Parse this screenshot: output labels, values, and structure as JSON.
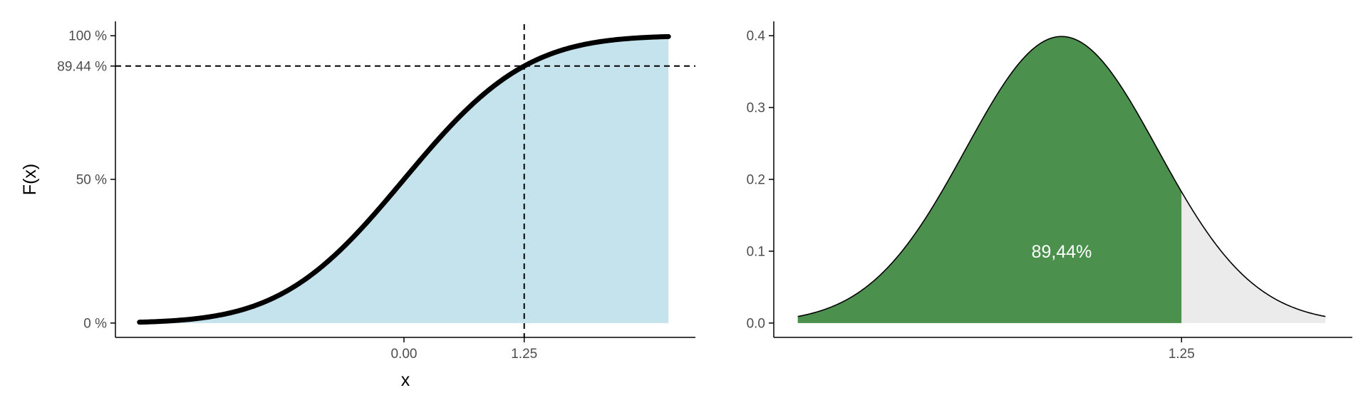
{
  "colors": {
    "cdf_fill": "#c5e3ed",
    "cdf_line": "#000000",
    "pdf_left_fill": "#4b914d",
    "pdf_right_fill": "#ebebeb",
    "pdf_label": "#ffffff",
    "axis": "#000000",
    "tick_text": "#4d4d4d"
  },
  "chart_data": [
    {
      "type": "line",
      "id": "cdf",
      "function": "normal_cdf",
      "mean": 0,
      "sd": 1,
      "x_range": [
        -2.75,
        2.75
      ],
      "xlim": [
        -3,
        3.03
      ],
      "ylim": [
        -0.05,
        1.05
      ],
      "xlabel": "x",
      "ylabel": "F(x)",
      "x_ticks": [
        {
          "value": 0,
          "label": "0.00"
        },
        {
          "value": 1.25,
          "label": "1.25"
        }
      ],
      "y_ticks": [
        {
          "value": 0,
          "label": "0 %"
        },
        {
          "value": 0.5,
          "label": "50 %"
        },
        {
          "value": 0.8944,
          "label": "89.44 %"
        },
        {
          "value": 1,
          "label": "100 %"
        }
      ],
      "area_under_curve": true,
      "reference_lines": {
        "x": 1.25,
        "y": 0.8944,
        "style": "dashed"
      },
      "grid": false
    },
    {
      "type": "area",
      "id": "pdf",
      "function": "normal_pdf",
      "mean": 0,
      "sd": 1,
      "x_range": [
        -2.75,
        2.75
      ],
      "xlim": [
        -3,
        3.03
      ],
      "ylim": [
        -0.02,
        0.42
      ],
      "xlabel": "",
      "ylabel": "",
      "x_ticks": [
        {
          "value": 1.25,
          "label": "1.25"
        }
      ],
      "y_ticks": [
        {
          "value": 0.0,
          "label": "0.0"
        },
        {
          "value": 0.1,
          "label": "0.1"
        },
        {
          "value": 0.2,
          "label": "0.2"
        },
        {
          "value": 0.3,
          "label": "0.3"
        },
        {
          "value": 0.4,
          "label": "0.4"
        }
      ],
      "shade_below": 1.25,
      "annotation": {
        "text": "89,44%",
        "x": 0,
        "y": 0.1
      },
      "grid": false
    }
  ]
}
